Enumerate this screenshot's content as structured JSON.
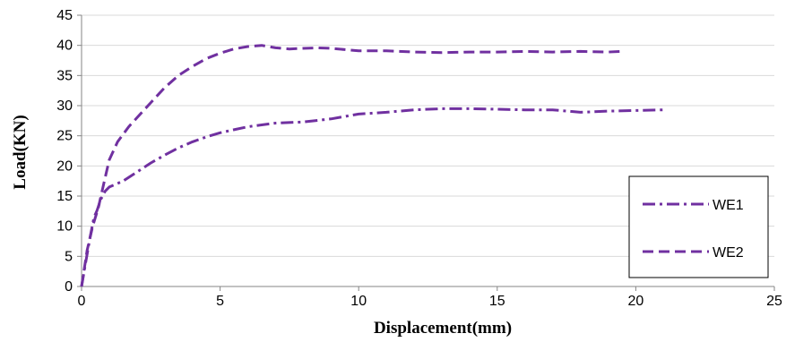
{
  "chart_data": {
    "type": "line",
    "title": "",
    "xlabel": "Displacement(mm)",
    "ylabel": "Load(KN)",
    "xlim": [
      0,
      25
    ],
    "ylim": [
      0,
      45
    ],
    "xticks": [
      0,
      5,
      10,
      15,
      20,
      25
    ],
    "yticks": [
      0,
      5,
      10,
      15,
      20,
      25,
      30,
      35,
      40,
      45
    ],
    "grid": "horizontal",
    "legend_position": "bottom-right",
    "series": [
      {
        "name": "WE1",
        "style": "dash-dot",
        "color": "#7030A0",
        "points": [
          [
            0,
            0
          ],
          [
            0.15,
            4
          ],
          [
            0.3,
            8
          ],
          [
            0.45,
            11.5
          ],
          [
            0.55,
            12.5
          ],
          [
            0.7,
            14.5
          ],
          [
            0.85,
            15.8
          ],
          [
            1.0,
            16.5
          ],
          [
            1.5,
            17.5
          ],
          [
            2.0,
            19
          ],
          [
            2.5,
            20.5
          ],
          [
            3.0,
            21.8
          ],
          [
            3.5,
            23
          ],
          [
            4.0,
            24
          ],
          [
            4.5,
            24.8
          ],
          [
            5.0,
            25.5
          ],
          [
            5.5,
            26
          ],
          [
            6.0,
            26.5
          ],
          [
            6.5,
            26.8
          ],
          [
            7.0,
            27.1
          ],
          [
            8.0,
            27.3
          ],
          [
            9.0,
            27.8
          ],
          [
            10.0,
            28.6
          ],
          [
            11.0,
            28.9
          ],
          [
            12.0,
            29.3
          ],
          [
            13.0,
            29.5
          ],
          [
            14.0,
            29.5
          ],
          [
            15.0,
            29.4
          ],
          [
            16.0,
            29.3
          ],
          [
            17.0,
            29.3
          ],
          [
            18.0,
            28.9
          ],
          [
            19.0,
            29.1
          ],
          [
            20.0,
            29.2
          ],
          [
            21.0,
            29.3
          ]
        ]
      },
      {
        "name": "WE2",
        "style": "dash",
        "color": "#7030A0",
        "points": [
          [
            0,
            0
          ],
          [
            0.2,
            6
          ],
          [
            0.4,
            10
          ],
          [
            0.6,
            13
          ],
          [
            0.8,
            17
          ],
          [
            1.0,
            21
          ],
          [
            1.3,
            24
          ],
          [
            1.7,
            26.5
          ],
          [
            2.0,
            28
          ],
          [
            2.5,
            30.5
          ],
          [
            3.0,
            33
          ],
          [
            3.5,
            35
          ],
          [
            4.0,
            36.5
          ],
          [
            4.5,
            37.8
          ],
          [
            5.0,
            38.7
          ],
          [
            5.5,
            39.4
          ],
          [
            6.0,
            39.8
          ],
          [
            6.5,
            40.0
          ],
          [
            7.0,
            39.6
          ],
          [
            7.5,
            39.4
          ],
          [
            8.0,
            39.5
          ],
          [
            8.5,
            39.6
          ],
          [
            9.0,
            39.5
          ],
          [
            9.5,
            39.3
          ],
          [
            10.0,
            39.1
          ],
          [
            11.0,
            39.1
          ],
          [
            12.0,
            38.9
          ],
          [
            13.0,
            38.8
          ],
          [
            14.0,
            38.9
          ],
          [
            15.0,
            38.9
          ],
          [
            16.0,
            39.0
          ],
          [
            17.0,
            38.9
          ],
          [
            18.0,
            39.0
          ],
          [
            19.0,
            38.9
          ],
          [
            19.5,
            39.0
          ]
        ]
      }
    ]
  }
}
